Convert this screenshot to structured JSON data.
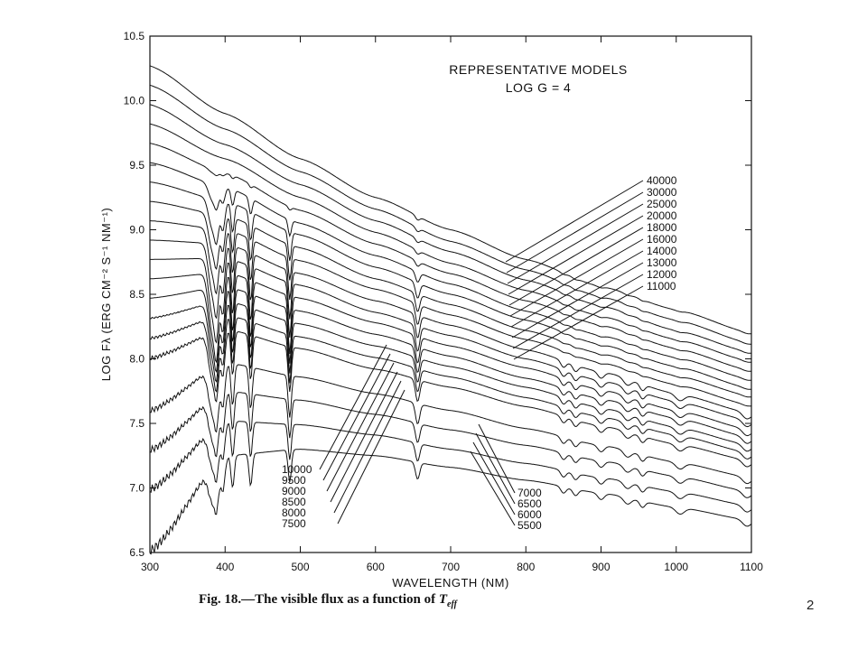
{
  "chart_data": {
    "type": "line",
    "title": "REPRESENTATIVE MODELS",
    "subtitle": "LOG G = 4",
    "xlabel": "WAVELENGTH (NM)",
    "ylabel": "LOG Fλ (ERG CM⁻² S⁻¹ NM⁻¹)",
    "xlim": [
      300,
      1100
    ],
    "ylim": [
      6.5,
      10.5
    ],
    "xticks": [
      300,
      400,
      500,
      600,
      700,
      800,
      900,
      1000,
      1100
    ],
    "yticks": [
      6.5,
      7.0,
      7.5,
      8.0,
      8.5,
      9.0,
      9.5,
      10.0,
      10.5
    ],
    "grid": false,
    "series": [
      {
        "name": "40000",
        "teff": 40000,
        "x": [
          300,
          400,
          500,
          600,
          700,
          800,
          900,
          1000,
          1100
        ],
        "y": [
          10.27,
          9.9,
          9.55,
          9.25,
          9.0,
          8.77,
          8.56,
          8.38,
          8.2
        ]
      },
      {
        "name": "30000",
        "teff": 30000,
        "x": [
          300,
          400,
          500,
          600,
          700,
          800,
          900,
          1000,
          1100
        ],
        "y": [
          10.12,
          9.78,
          9.45,
          9.16,
          8.91,
          8.69,
          8.48,
          8.3,
          8.12
        ]
      },
      {
        "name": "25000",
        "teff": 25000,
        "x": [
          300,
          400,
          500,
          600,
          700,
          800,
          900,
          1000,
          1100
        ],
        "y": [
          9.97,
          9.66,
          9.35,
          9.07,
          8.83,
          8.61,
          8.41,
          8.22,
          8.05
        ]
      },
      {
        "name": "20000",
        "teff": 20000,
        "x": [
          300,
          400,
          500,
          600,
          700,
          800,
          900,
          1000,
          1100
        ],
        "y": [
          9.82,
          9.55,
          9.25,
          8.98,
          8.74,
          8.53,
          8.33,
          8.15,
          7.98
        ]
      },
      {
        "name": "18000",
        "teff": 18000,
        "x": [
          300,
          400,
          500,
          600,
          700,
          800,
          900,
          1000,
          1100
        ],
        "y": [
          9.67,
          9.44,
          9.15,
          8.89,
          8.66,
          8.45,
          8.26,
          8.08,
          7.91
        ]
      },
      {
        "name": "16000",
        "teff": 16000,
        "x": [
          300,
          400,
          500,
          600,
          700,
          800,
          900,
          1000,
          1100
        ],
        "y": [
          9.52,
          9.33,
          9.05,
          8.8,
          8.58,
          8.37,
          8.18,
          8.01,
          7.84
        ]
      },
      {
        "name": "14000",
        "teff": 14000,
        "x": [
          300,
          400,
          500,
          600,
          700,
          800,
          900,
          1000,
          1100
        ],
        "y": [
          9.37,
          9.22,
          8.96,
          8.71,
          8.5,
          8.3,
          8.11,
          7.94,
          7.77
        ]
      },
      {
        "name": "13000",
        "teff": 13000,
        "x": [
          300,
          400,
          500,
          600,
          700,
          800,
          900,
          1000,
          1100
        ],
        "y": [
          9.22,
          9.11,
          8.86,
          8.62,
          8.42,
          8.22,
          8.04,
          7.87,
          7.71
        ]
      },
      {
        "name": "12000",
        "teff": 12000,
        "x": [
          300,
          400,
          500,
          600,
          700,
          800,
          900,
          1000,
          1100
        ],
        "y": [
          9.07,
          9.0,
          8.76,
          8.54,
          8.34,
          8.15,
          7.97,
          7.8,
          7.64
        ]
      },
      {
        "name": "11000",
        "teff": 11000,
        "x": [
          300,
          400,
          500,
          600,
          700,
          800,
          900,
          1000,
          1100
        ],
        "y": [
          8.92,
          8.89,
          8.66,
          8.45,
          8.26,
          8.07,
          7.9,
          7.73,
          7.58
        ]
      },
      {
        "name": "10000",
        "teff": 10000,
        "x": [
          300,
          400,
          500,
          600,
          700,
          800,
          900,
          1000,
          1100
        ],
        "y": [
          8.77,
          8.78,
          8.57,
          8.36,
          8.18,
          8.0,
          7.83,
          7.67,
          7.52
        ]
      },
      {
        "name": "9500",
        "teff": 9500,
        "x": [
          300,
          400,
          500,
          600,
          700,
          800,
          900,
          1000,
          1100
        ],
        "y": [
          8.62,
          8.67,
          8.47,
          8.28,
          8.1,
          7.93,
          7.76,
          7.6,
          7.45
        ]
      },
      {
        "name": "9000",
        "teff": 9000,
        "x": [
          300,
          400,
          500,
          600,
          700,
          800,
          900,
          1000,
          1100
        ],
        "y": [
          8.47,
          8.56,
          8.37,
          8.19,
          8.02,
          7.85,
          7.69,
          7.54,
          7.39
        ]
      },
      {
        "name": "8500",
        "teff": 8500,
        "x": [
          300,
          400,
          500,
          600,
          700,
          800,
          900,
          1000,
          1100
        ],
        "y": [
          8.32,
          8.45,
          8.27,
          8.1,
          7.94,
          7.78,
          7.62,
          7.47,
          7.33
        ]
      },
      {
        "name": "8000",
        "teff": 8000,
        "x": [
          300,
          400,
          500,
          600,
          700,
          800,
          900,
          1000,
          1100
        ],
        "y": [
          8.17,
          8.34,
          8.17,
          8.01,
          7.86,
          7.7,
          7.55,
          7.41,
          7.27
        ]
      },
      {
        "name": "7500",
        "teff": 7500,
        "x": [
          300,
          400,
          500,
          600,
          700,
          800,
          900,
          1000,
          1100
        ],
        "y": [
          8.02,
          8.23,
          8.08,
          7.92,
          7.78,
          7.63,
          7.48,
          7.34,
          7.21
        ]
      },
      {
        "name": "7000",
        "teff": 7000,
        "x": [
          300,
          400,
          500,
          600,
          700,
          800,
          900,
          1000,
          1100
        ],
        "y": [
          7.62,
          7.97,
          7.86,
          7.73,
          7.6,
          7.46,
          7.33,
          7.2,
          7.08
        ]
      },
      {
        "name": "6500",
        "teff": 6500,
        "x": [
          300,
          400,
          500,
          600,
          700,
          800,
          900,
          1000,
          1100
        ],
        "y": [
          7.32,
          7.75,
          7.68,
          7.57,
          7.45,
          7.33,
          7.21,
          7.09,
          6.97
        ]
      },
      {
        "name": "6000",
        "teff": 6000,
        "x": [
          300,
          400,
          500,
          600,
          700,
          800,
          900,
          1000,
          1100
        ],
        "y": [
          7.02,
          7.52,
          7.49,
          7.41,
          7.3,
          7.19,
          7.08,
          6.97,
          6.86
        ]
      },
      {
        "name": "5500",
        "teff": 5500,
        "x": [
          300,
          400,
          500,
          600,
          700,
          800,
          900,
          1000,
          1100
        ],
        "y": [
          6.55,
          7.25,
          7.3,
          7.25,
          7.16,
          7.06,
          6.96,
          6.85,
          6.75
        ]
      }
    ],
    "annotations": {
      "hot_labels": [
        "40000",
        "30000",
        "25000",
        "20000",
        "18000",
        "16000",
        "14000",
        "13000",
        "12000",
        "11000"
      ],
      "mid_labels": [
        "10000",
        "9500",
        "9000",
        "8500",
        "8000",
        "7500"
      ],
      "cool_labels": [
        "7000",
        "6500",
        "6000",
        "5500"
      ]
    }
  },
  "caption": {
    "prefix": "Fig. 18.",
    "text": "The visible flux as a function of ",
    "symbol": "T",
    "subscript": "eff"
  },
  "page_number": "2",
  "colors": {
    "ink": "#111111",
    "background": "#ffffff"
  }
}
